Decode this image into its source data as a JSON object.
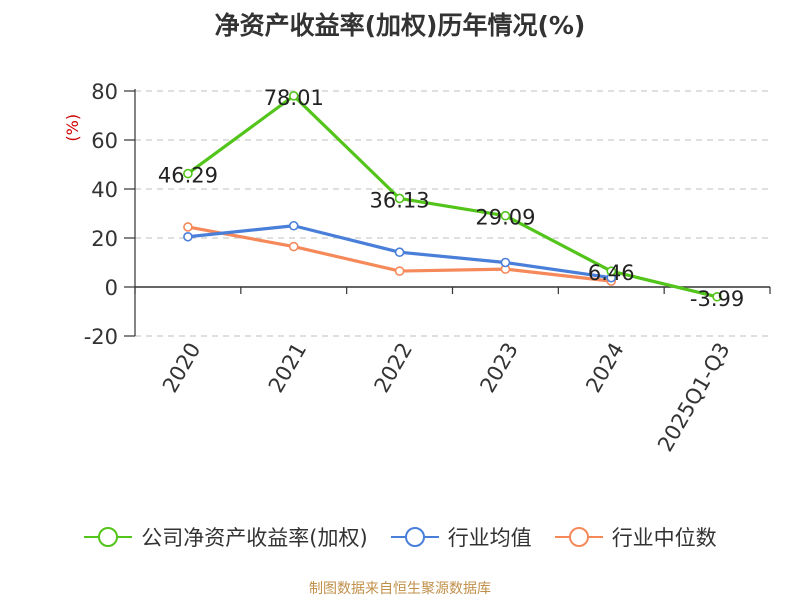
{
  "chart_data": {
    "type": "line",
    "title": "净资产收益率(加权)历年情况(%)",
    "ylabel": "(%)",
    "xlabel": "",
    "categories": [
      "2020",
      "2021",
      "2022",
      "2023",
      "2024",
      "2025Q1-Q3"
    ],
    "ylim": [
      -20,
      80
    ],
    "yticks": [
      -20,
      0,
      20,
      40,
      60,
      80
    ],
    "grid": true,
    "legend_position": "bottom",
    "series": [
      {
        "name": "公司净资产收益率(加权)",
        "color": "#52c41a",
        "values": [
          46.29,
          78.01,
          36.13,
          29.09,
          6.46,
          -3.99
        ],
        "labels": [
          "46.29",
          "78.01",
          "36.13",
          "29.09",
          "6.46",
          "-3.99"
        ]
      },
      {
        "name": "行业均值",
        "color": "#4a7fd9",
        "values": [
          20.5,
          25.0,
          14.2,
          10.0,
          3.8,
          null
        ]
      },
      {
        "name": "行业中位数",
        "color": "#f5895a",
        "values": [
          24.5,
          16.5,
          6.5,
          7.3,
          2.4,
          null
        ]
      }
    ]
  },
  "source": {
    "text": "制图数据来自恒生聚源数据库",
    "color": "#c0904a"
  },
  "colors": {
    "ylabel": "#cc0000",
    "axis": "#333333",
    "grid": "#cccccc"
  }
}
